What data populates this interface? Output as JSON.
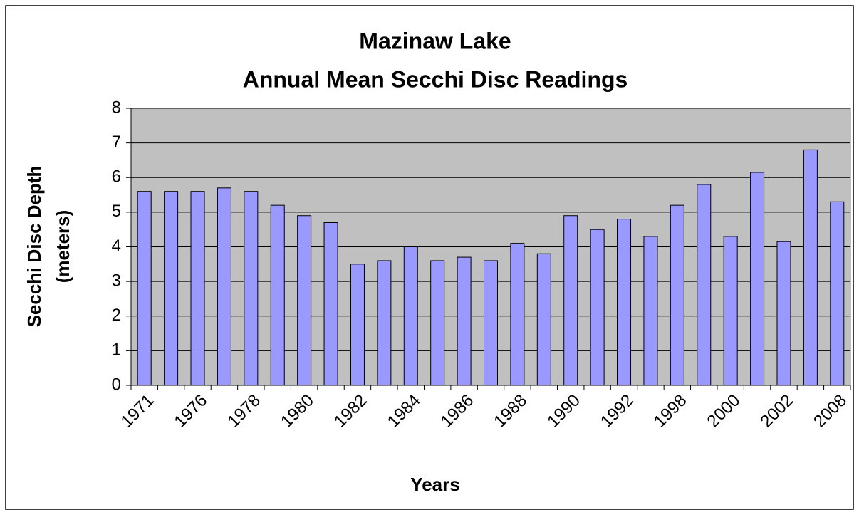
{
  "chart_data": {
    "type": "bar",
    "title": [
      "Mazinaw Lake",
      "Annual Mean Secchi Disc Readings"
    ],
    "x_label": "Years",
    "y_label": [
      "Secchi Disc Depth",
      "(meters)"
    ],
    "categories": [
      "1971",
      null,
      "1976",
      null,
      "1978",
      null,
      "1980",
      null,
      "1982",
      null,
      "1984",
      null,
      "1986",
      null,
      "1988",
      null,
      "1990",
      null,
      "1992",
      null,
      "1998",
      null,
      "2000",
      null,
      "2002",
      null,
      "2008"
    ],
    "values": [
      5.6,
      5.6,
      5.6,
      5.7,
      5.6,
      5.2,
      4.9,
      4.7,
      3.5,
      3.6,
      4.0,
      3.6,
      3.7,
      3.6,
      4.1,
      3.8,
      4.9,
      4.5,
      4.8,
      4.3,
      5.2,
      5.8,
      4.3,
      6.15,
      4.15,
      6.8,
      5.3
    ],
    "color": "#9999ff",
    "ylim": [
      0,
      8
    ],
    "yticks": [
      0,
      1,
      2,
      3,
      4,
      5,
      6,
      7,
      8
    ],
    "grid": true
  }
}
